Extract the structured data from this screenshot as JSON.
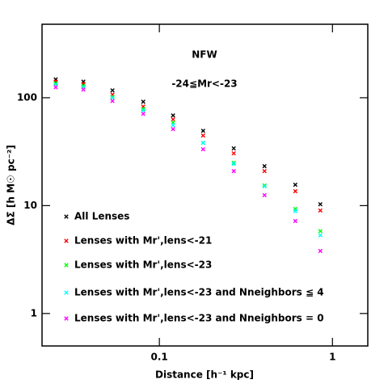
{
  "chart_data": {
    "type": "scatter",
    "xlabel": "Distance [h⁻¹ kpc]",
    "ylabel": "ΔΣ [h M☉ pc⁻²]",
    "annotations": [
      "NFW",
      "-24≦Mr<-23"
    ],
    "xscale": "log",
    "yscale": "log",
    "xlim": [
      0.021,
      1.6
    ],
    "ylim": [
      0.5,
      480
    ],
    "xticks": [
      0.1,
      1
    ],
    "yticks": [
      1,
      10,
      100
    ],
    "legend": "lower left",
    "x": [
      0.0252,
      0.0364,
      0.0536,
      0.0807,
      0.12,
      0.179,
      0.269,
      0.405,
      0.61,
      0.851
    ],
    "series": [
      {
        "name": "All Lenses",
        "color": "#000000",
        "values": [
          148,
          141,
          117,
          91.8,
          68.5,
          49.4,
          33.9,
          23.2,
          15.6,
          10.3
        ]
      },
      {
        "name": "Lenses with Mr',lens<-21",
        "color": "#ff0000",
        "values": [
          141,
          134,
          107,
          82.8,
          63.0,
          44.6,
          30.5,
          20.9,
          13.6,
          9.0
        ]
      },
      {
        "name": "Lenses with Mr',lens<-23",
        "color": "#00ff00",
        "values": [
          136,
          129,
          102,
          78.7,
          58.8,
          38.2,
          24.9,
          15.4,
          9.3,
          5.8
        ]
      },
      {
        "name": "Lenses with Mr',lens<-23 and Nneighbors ≦ 4",
        "color": "#00ffff",
        "values": [
          132,
          125,
          100,
          76.0,
          55.7,
          38.2,
          24.4,
          15.1,
          8.9,
          5.3
        ]
      },
      {
        "name": "Lenses with Mr',lens<-23 and Nneighbors = 0",
        "color": "#ff00ff",
        "values": [
          125,
          119,
          93.3,
          71.0,
          51.2,
          33.3,
          20.9,
          12.5,
          7.2,
          3.8
        ]
      }
    ]
  }
}
